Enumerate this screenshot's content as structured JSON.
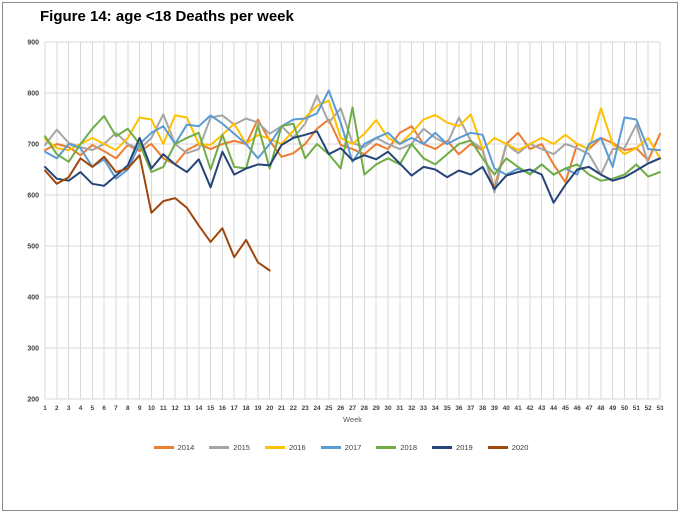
{
  "window": {
    "background": "#FFFFFF",
    "frame_border_color": "#8C8C8C",
    "gridline_color": "#D9D9D9",
    "tick_label_color": "#404040",
    "axis_title_color": "#595959"
  },
  "chart_data": {
    "type": "line",
    "title": "Figure 14: age <18 Deaths per week",
    "xlabel": "Week",
    "ylabel": "",
    "x": [
      1,
      2,
      3,
      4,
      5,
      6,
      7,
      8,
      9,
      10,
      11,
      12,
      13,
      14,
      15,
      16,
      17,
      18,
      19,
      20,
      21,
      22,
      23,
      24,
      25,
      26,
      27,
      28,
      29,
      30,
      31,
      32,
      33,
      34,
      35,
      36,
      37,
      38,
      39,
      40,
      41,
      42,
      43,
      44,
      45,
      46,
      47,
      48,
      49,
      50,
      51,
      52,
      53
    ],
    "ylim": [
      200,
      900
    ],
    "ytick_step": 100,
    "yticks": [
      200,
      300,
      400,
      500,
      600,
      700,
      800,
      900
    ],
    "grid": true,
    "legend_position": "bottom",
    "series": [
      {
        "name": "2014",
        "color": "#ED7D31",
        "values": [
          688,
          700,
          694,
          678,
          698,
          686,
          672,
          698,
          686,
          700,
          672,
          660,
          688,
          700,
          690,
          700,
          706,
          700,
          748,
          706,
          675,
          682,
          700,
          730,
          748,
          698,
          690,
          680,
          700,
          690,
          722,
          735,
          700,
          690,
          706,
          680,
          700,
          688,
          614,
          700,
          722,
          690,
          700,
          660,
          625,
          700,
          690,
          712,
          702,
          688,
          692,
          668,
          720
        ]
      },
      {
        "name": "2015",
        "color": "#A5A5A5",
        "values": [
          698,
          728,
          702,
          694,
          688,
          700,
          722,
          700,
          690,
          712,
          758,
          700,
          682,
          690,
          752,
          756,
          738,
          750,
          742,
          720,
          735,
          712,
          740,
          795,
          742,
          770,
          702,
          694,
          712,
          700,
          690,
          700,
          730,
          712,
          700,
          752,
          706,
          690,
          605,
          700,
          682,
          700,
          690,
          680,
          700,
          692,
          680,
          640,
          690,
          692,
          738,
          662,
          672
        ]
      },
      {
        "name": "2016",
        "color": "#FFC000",
        "values": [
          710,
          692,
          688,
          700,
          712,
          700,
          688,
          712,
          752,
          748,
          700,
          756,
          752,
          700,
          698,
          718,
          740,
          700,
          718,
          710,
          700,
          726,
          752,
          775,
          785,
          712,
          700,
          720,
          747,
          712,
          700,
          722,
          748,
          757,
          742,
          735,
          758,
          690,
          712,
          700,
          688,
          700,
          712,
          700,
          718,
          700,
          690,
          770,
          700,
          680,
          692,
          712,
          672
        ]
      },
      {
        "name": "2017",
        "color": "#5B9BD5",
        "values": [
          685,
          672,
          700,
          692,
          655,
          670,
          632,
          650,
          700,
          722,
          735,
          700,
          738,
          735,
          756,
          740,
          720,
          700,
          672,
          700,
          735,
          748,
          750,
          760,
          805,
          742,
          665,
          700,
          712,
          722,
          700,
          712,
          700,
          722,
          700,
          712,
          722,
          718,
          652,
          640,
          652,
          642,
          660,
          640,
          652,
          640,
          700,
          712,
          655,
          752,
          748,
          690,
          688
        ]
      },
      {
        "name": "2018",
        "color": "#70AD47",
        "values": [
          715,
          680,
          665,
          700,
          730,
          755,
          715,
          730,
          700,
          645,
          655,
          700,
          712,
          722,
          650,
          718,
          655,
          652,
          737,
          652,
          735,
          740,
          672,
          700,
          680,
          652,
          772,
          640,
          660,
          672,
          660,
          700,
          672,
          660,
          680,
          700,
          707,
          672,
          640,
          672,
          655,
          640,
          660,
          640,
          652,
          660,
          640,
          628,
          632,
          640,
          660,
          636,
          645
        ]
      },
      {
        "name": "2019",
        "color": "#264478",
        "values": [
          655,
          632,
          628,
          645,
          622,
          618,
          638,
          658,
          712,
          652,
          680,
          660,
          645,
          670,
          615,
          685,
          640,
          652,
          660,
          658,
          698,
          712,
          718,
          725,
          680,
          692,
          668,
          678,
          670,
          685,
          662,
          638,
          655,
          650,
          635,
          648,
          640,
          655,
          612,
          638,
          645,
          650,
          640,
          585,
          620,
          650,
          655,
          640,
          628,
          635,
          648,
          662,
          672
        ]
      },
      {
        "name": "2020",
        "color": "#9E480E",
        "values": [
          648,
          622,
          635,
          672,
          655,
          675,
          645,
          652,
          678,
          565,
          588,
          594,
          575,
          540,
          508,
          535,
          478,
          512,
          468,
          452
        ]
      }
    ]
  }
}
